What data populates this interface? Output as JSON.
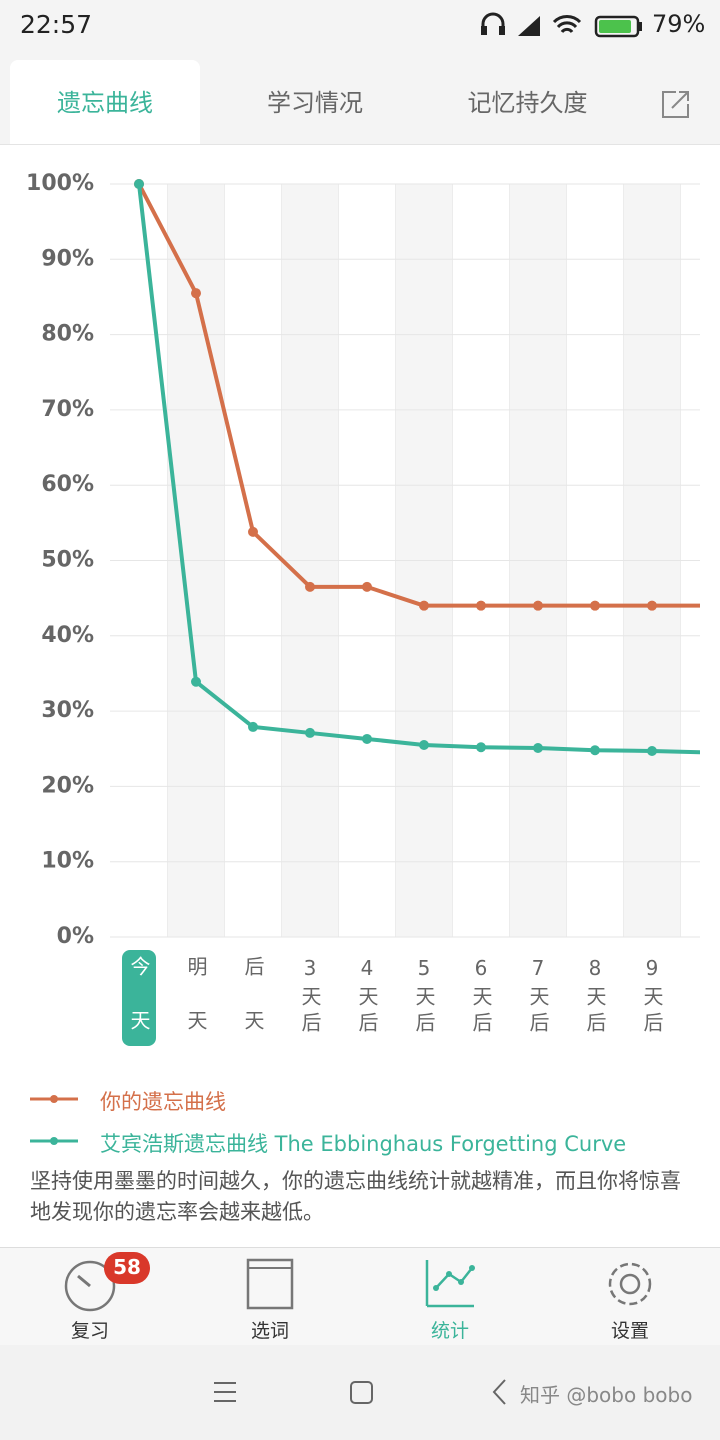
{
  "status_bar": {
    "time": "22:57",
    "battery": "79%"
  },
  "tabs": [
    "遗忘曲线",
    "学习情况",
    "记忆持久度"
  ],
  "chart_data": {
    "type": "line",
    "categories": [
      "今天",
      "明天",
      "后天",
      "3天后",
      "4天后",
      "5天后",
      "6天后",
      "7天后",
      "8天后",
      "9天后",
      null
    ],
    "series": [
      {
        "name": "你的遗忘曲线",
        "color": "#d4704a",
        "values": [
          100,
          85.5,
          53.8,
          46.5,
          46.5,
          44,
          44,
          44,
          44,
          44,
          44
        ]
      },
      {
        "name": "艾宾浩斯遗忘曲线 The Ebbinghaus Forgetting Curve",
        "color": "#3bb49a",
        "values": [
          100,
          33.9,
          27.9,
          27.1,
          26.3,
          25.5,
          25.2,
          25.1,
          24.8,
          24.7,
          24.5
        ]
      }
    ],
    "ylim": [
      0,
      100
    ],
    "yticks": [
      {
        "value": 0,
        "label": "0%"
      },
      {
        "value": 10,
        "label": "10%"
      },
      {
        "value": 20,
        "label": "20%"
      },
      {
        "value": 30,
        "label": "30%"
      },
      {
        "value": 40,
        "label": "40%"
      },
      {
        "value": 50,
        "label": "50%"
      },
      {
        "value": 60,
        "label": "60%"
      },
      {
        "value": 70,
        "label": "70%"
      },
      {
        "value": 80,
        "label": "80%"
      },
      {
        "value": 90,
        "label": "90%"
      },
      {
        "value": 100,
        "label": "100%"
      }
    ],
    "grid": true
  },
  "note": "坚持使用墨墨的时间越久，你的遗忘曲线统计就越精准，而且你将惊喜地发现你的遗忘率会越来越低。",
  "bottom_nav": [
    {
      "label": "复习",
      "badge": 58
    },
    {
      "label": "选词"
    },
    {
      "label": "统计"
    },
    {
      "label": "设置"
    }
  ],
  "watermark": "知乎 @bobo bobo"
}
